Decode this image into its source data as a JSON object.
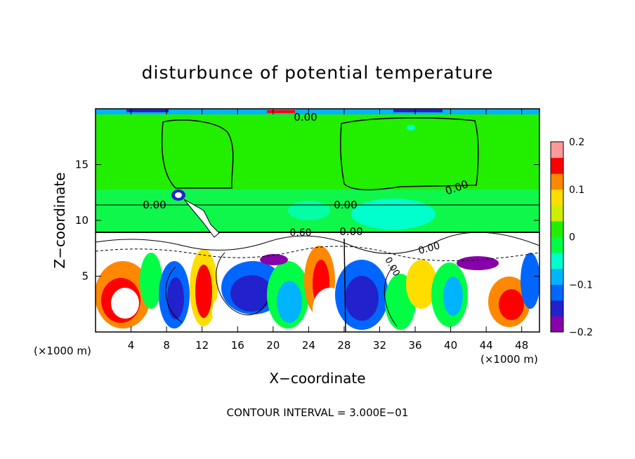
{
  "chart_data": {
    "type": "heatmap",
    "title": "disturbunce of potential temperature",
    "xlabel": "X−coordinate",
    "ylabel": "Z−coordinate",
    "x_unit_left": "(×1000 m)",
    "x_unit_right": "(×1000 m)",
    "xlim": [
      0,
      50
    ],
    "ylim": [
      0,
      20
    ],
    "x_ticks": [
      "4",
      "8",
      "12",
      "16",
      "20",
      "24",
      "28",
      "32",
      "36",
      "40",
      "44",
      "48"
    ],
    "y_ticks": [
      "5",
      "10",
      "15"
    ],
    "colorbar": {
      "ticks": [
        "0.2",
        "0.1",
        "0",
        "−0.1",
        "−0.2"
      ],
      "range": [
        -0.2,
        0.2
      ]
    },
    "contour_labels": [
      "0.00",
      "0.00",
      "0.00",
      "0.00",
      "0.00",
      "0.00",
      "0.60",
      "0.00"
    ],
    "footer": "CONTOUR INTERVAL = 3.000E−01"
  },
  "colors": {
    "ambient": "#22ee00",
    "colorbar_stops": [
      "#8800aa",
      "#2222cc",
      "#0066ff",
      "#00b4ff",
      "#00ffcc",
      "#00ff44",
      "#22ee00",
      "#ccee00",
      "#ffdd00",
      "#ff8800",
      "#ff0000",
      "#ff9999"
    ]
  }
}
